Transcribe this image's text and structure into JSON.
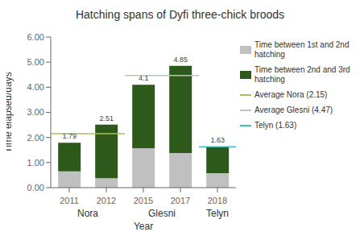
{
  "chart_data": {
    "type": "bar",
    "stacked": true,
    "title": "Hatching spans of Dyfi three-chick broods",
    "xlabel": "Year",
    "ylabel": "Time elapsed/days",
    "categories": [
      "2011",
      "2012",
      "2015",
      "2017",
      "2018"
    ],
    "groups": [
      {
        "name": "Nora",
        "categories": [
          "2011",
          "2012"
        ]
      },
      {
        "name": "Glesni",
        "categories": [
          "2015",
          "2017"
        ]
      },
      {
        "name": "Telyn",
        "categories": [
          "2018"
        ]
      }
    ],
    "series": [
      {
        "name": "Time between 1st and 2nd\nhatching",
        "color": "#c0c0c0",
        "values": [
          0.65,
          0.38,
          1.57,
          1.38,
          0.58
        ]
      },
      {
        "name": "Time between 2nd and 3rd\nhatching",
        "color": "#2d5a1b",
        "values": [
          1.14,
          2.13,
          2.53,
          3.47,
          1.05
        ]
      }
    ],
    "totals": [
      1.79,
      2.51,
      4.1,
      4.85,
      1.63
    ],
    "reference_lines": [
      {
        "name": "Average Nora (2.15)",
        "value": 2.15,
        "color": "#a8c060",
        "group": "Nora"
      },
      {
        "name": "Average Glesni (4.47)",
        "value": 4.47,
        "color": "#c0c0c0",
        "group": "Glesni"
      },
      {
        "name": "Telyn (1.63)",
        "value": 1.63,
        "color": "#40c0b0",
        "group": "Telyn"
      }
    ],
    "ylim": [
      0,
      6
    ],
    "yticks": [
      {
        "value": 0,
        "label": "0.00"
      },
      {
        "value": 1,
        "label": "1.00"
      },
      {
        "value": 2,
        "label": "2.00"
      },
      {
        "value": 3,
        "label": "3.00"
      },
      {
        "value": 4,
        "label": "4.00"
      },
      {
        "value": 5,
        "label": "5.00"
      },
      {
        "value": 6,
        "label": "6.00"
      }
    ],
    "grid": false,
    "legend": "right"
  }
}
